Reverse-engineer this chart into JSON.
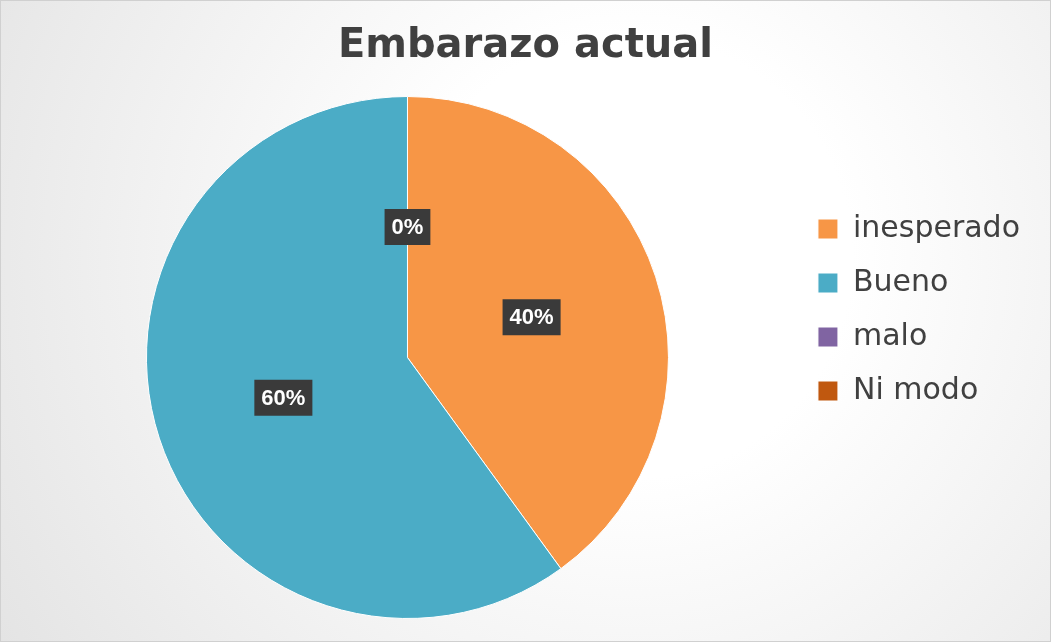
{
  "chart_data": {
    "type": "pie",
    "title": "Embarazo actual",
    "categories": [
      "inesperado",
      "Bueno",
      "malo",
      "Ni modo"
    ],
    "values": [
      40,
      60,
      0,
      0
    ],
    "colors": [
      "#f79646",
      "#4bacc6",
      "#8064a2",
      "#c0580f"
    ],
    "value_labels": [
      "40%",
      "60%",
      "0%",
      null
    ],
    "legend": "right"
  }
}
